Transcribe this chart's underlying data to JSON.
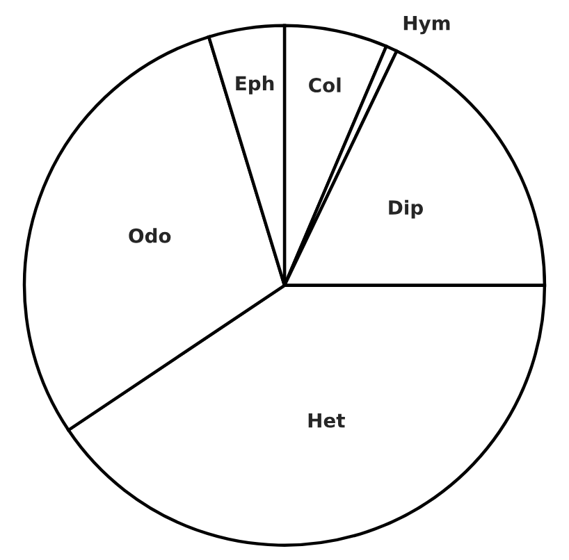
{
  "chart_data": {
    "type": "pie",
    "categories": [
      "Col",
      "Hym",
      "Dip",
      "Het",
      "Odo",
      "Eph"
    ],
    "values": [
      6.4,
      0.7,
      17.9,
      40.6,
      29.7,
      4.7
    ],
    "colors": [
      "#ffffff",
      "#ffffff",
      "#ffffff",
      "#ffffff",
      "#ffffff",
      "#ffffff"
    ]
  }
}
